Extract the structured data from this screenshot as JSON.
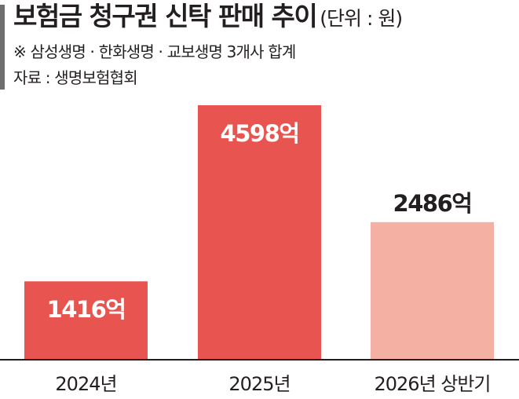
{
  "header": {
    "title": "보험금 청구권 신탁 판매 추이",
    "unit": "(단위 : 원)",
    "note": "※ 삼성생명 · 한화생명 · 교보생명 3개사 합계",
    "source": "자료 : 생명보험협회"
  },
  "chart_data": {
    "type": "bar",
    "categories": [
      "2024년",
      "2025년",
      "2026년 상반기"
    ],
    "values": [
      1416,
      4598,
      2486
    ],
    "value_labels": [
      "1416억",
      "4598억",
      "2486억"
    ],
    "unit": "억 원",
    "title": "보험금 청구권 신탁 판매 추이",
    "xlabel": "",
    "ylabel": "",
    "ylim": [
      0,
      4598
    ],
    "grid": false,
    "legend": "none",
    "colors": [
      "#e85450",
      "#e85450",
      "#f4b0a3"
    ],
    "label_colors": [
      "#ffffff",
      "#ffffff",
      "#231f20"
    ],
    "axis_color": "#231f20"
  }
}
